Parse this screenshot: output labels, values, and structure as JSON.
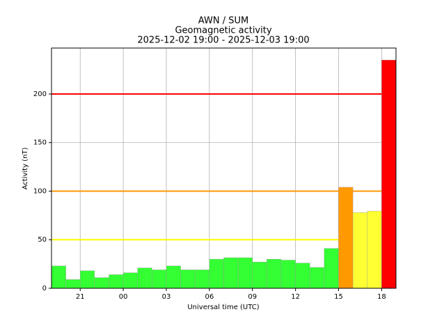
{
  "chart_data": {
    "type": "bar",
    "title": "AWN / SUM",
    "subtitle": "Geomagnetic activity",
    "period": "2025-12-02 19:00 - 2025-12-03 19:00",
    "xlabel": "Universal time (UTC)",
    "ylabel": "Activity (nT)",
    "x": [
      19,
      20,
      21,
      22,
      23,
      24,
      25,
      26,
      27,
      28,
      29,
      30,
      31,
      32,
      33,
      34,
      35,
      36,
      37,
      38,
      39,
      40,
      41,
      42
    ],
    "values": [
      23,
      9,
      18,
      11,
      14,
      16,
      21,
      19,
      23,
      19,
      19,
      30,
      31.5,
      31.5,
      27,
      30,
      29,
      26,
      21.5,
      41,
      104,
      78,
      79.5,
      235
    ],
    "colors": [
      "#33ff33",
      "#33ff33",
      "#33ff33",
      "#33ff33",
      "#33ff33",
      "#33ff33",
      "#33ff33",
      "#33ff33",
      "#33ff33",
      "#33ff33",
      "#33ff33",
      "#33ff33",
      "#33ff33",
      "#33ff33",
      "#33ff33",
      "#33ff33",
      "#33ff33",
      "#33ff33",
      "#33ff33",
      "#33ff33",
      "#ff9900",
      "#ffff33",
      "#ffff33",
      "#ff0000"
    ],
    "xlim": [
      19,
      43
    ],
    "xticks": [
      21,
      {
        "value": 24,
        "label": "00"
      },
      {
        "value": 27,
        "label": "03"
      },
      {
        "value": 30,
        "label": "06"
      },
      {
        "value": 33,
        "label": "09"
      },
      {
        "value": 36,
        "label": "12"
      },
      {
        "value": 39,
        "label": "15"
      },
      {
        "value": 42,
        "label": "18"
      }
    ],
    "ylim": [
      0,
      247.3
    ],
    "yticks": [
      0,
      50,
      100,
      150,
      200
    ],
    "grid": true,
    "thresholds": [
      {
        "value": 50,
        "color": "#ffff00"
      },
      {
        "value": 100,
        "color": "#ff9900"
      },
      {
        "value": 200,
        "color": "#ff0000"
      }
    ]
  }
}
